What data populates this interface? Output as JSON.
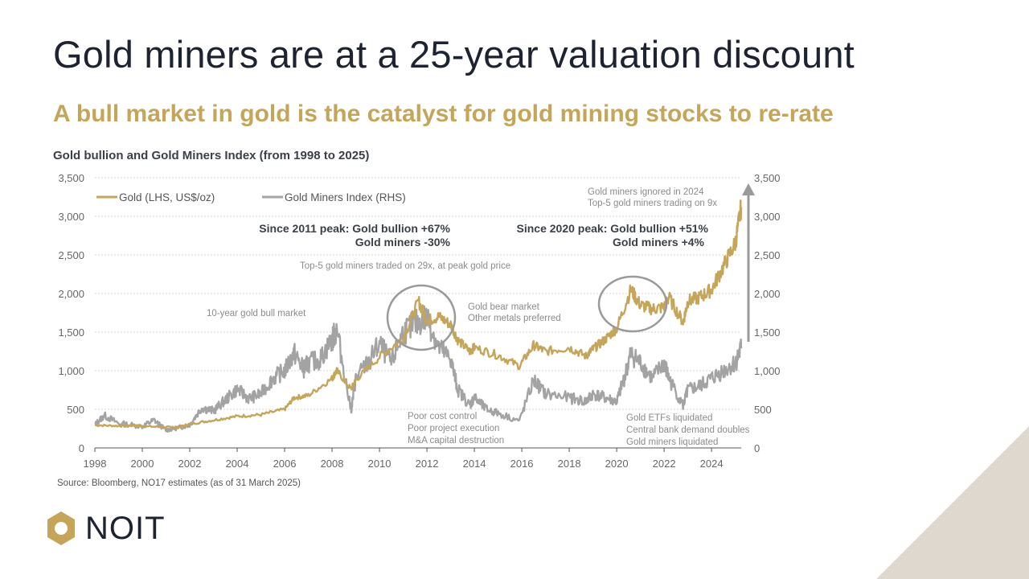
{
  "title": "Gold miners are at a 25-year valuation discount",
  "subtitle": "A bull market in gold is the catalyst for gold mining stocks to re-rate",
  "source": "Source: Bloomberg, NO17 estimates (as of 31 March 2025)",
  "logo": {
    "text": "NOIT",
    "icon": "hexagon-logo-icon",
    "color": "#c5a55a"
  },
  "colors": {
    "gold": "#c5a55a",
    "miners": "#a3a3a3",
    "title": "#1d2330",
    "subtitle": "#c5a55a"
  },
  "chart_data": {
    "type": "line",
    "title": "Gold bullion and Gold Miners Index (from 1998 to 2025)",
    "xlim": [
      1998,
      2025.25
    ],
    "x_ticks": [
      "1998",
      "2000",
      "2002",
      "2004",
      "2006",
      "2008",
      "2010",
      "2012",
      "2014",
      "2016",
      "2018",
      "2020",
      "2022",
      "2024"
    ],
    "y_left": {
      "range": [
        0,
        3500
      ],
      "ticks": [
        "0",
        "500",
        "1,000",
        "1,500",
        "2,000",
        "2,500",
        "3,000",
        "3,500"
      ]
    },
    "y_right": {
      "range": [
        0,
        3500
      ],
      "ticks": [
        "0",
        "500",
        "1,000",
        "1,500",
        "2,000",
        "2,500",
        "3,000",
        "3,500"
      ]
    },
    "grid": true,
    "legend_position": "top-left",
    "series": [
      {
        "name": "Gold (LHS, US$/oz)",
        "x": [
          1998,
          1999,
          1999.7,
          2000,
          2001,
          2001.5,
          2002,
          2003,
          2004,
          2005,
          2006,
          2006.4,
          2007,
          2008,
          2008.2,
          2008.8,
          2009,
          2010,
          2011,
          2011.65,
          2012,
          2012.5,
          2013,
          2013.3,
          2013.8,
          2014,
          2015,
          2015.9,
          2016.5,
          2017,
          2018,
          2018.7,
          2019,
          2019.5,
          2020,
          2020.6,
          2021,
          2021.5,
          2022,
          2022.2,
          2022.8,
          2023,
          2023.5,
          2024,
          2024.5,
          2025,
          2025.25
        ],
        "values": [
          295,
          285,
          290,
          280,
          270,
          265,
          310,
          360,
          410,
          430,
          500,
          650,
          680,
          900,
          1000,
          760,
          880,
          1180,
          1420,
          1900,
          1650,
          1700,
          1600,
          1400,
          1250,
          1300,
          1200,
          1060,
          1330,
          1250,
          1300,
          1190,
          1280,
          1400,
          1550,
          2050,
          1850,
          1800,
          1820,
          1950,
          1630,
          1900,
          1950,
          2050,
          2350,
          2650,
          3120
        ]
      },
      {
        "name": "Gold Miners Index (RHS)",
        "x": [
          1998,
          1998.4,
          1999,
          2000,
          2000.5,
          2001,
          2001.5,
          2002,
          2002.5,
          2003,
          2003.5,
          2004,
          2004.5,
          2005,
          2005.5,
          2006,
          2006.4,
          2006.8,
          2007,
          2007.5,
          2008,
          2008.2,
          2008.8,
          2009,
          2009.5,
          2010,
          2010.5,
          2011,
          2011.5,
          2012,
          2012.5,
          2013,
          2013.3,
          2013.8,
          2014,
          2014.5,
          2015,
          2015.9,
          2016.5,
          2017,
          2018,
          2018.7,
          2019,
          2019.5,
          2020,
          2020.3,
          2020.6,
          2021,
          2021.5,
          2022,
          2022.2,
          2022.8,
          2023,
          2023.5,
          2024,
          2024.5,
          2025,
          2025.25
        ],
        "values": [
          300,
          420,
          320,
          280,
          360,
          230,
          260,
          300,
          520,
          480,
          620,
          760,
          640,
          700,
          900,
          1000,
          1230,
          1020,
          1100,
          1150,
          1400,
          1530,
          480,
          900,
          1100,
          1350,
          1100,
          1500,
          1600,
          1700,
          1300,
          1150,
          760,
          550,
          650,
          500,
          450,
          350,
          880,
          700,
          650,
          600,
          700,
          650,
          600,
          880,
          1220,
          1100,
          900,
          1100,
          900,
          550,
          750,
          800,
          900,
          1000,
          1100,
          1290
        ]
      }
    ],
    "annotations": {
      "bull_market": "10-year gold bull market",
      "top5_29x": "Top-5 gold miners traded on 29x, at peak gold price",
      "since_2011_line1": "Since 2011 peak: Gold bullion +67%",
      "since_2011_line2": "Gold miners -30%",
      "since_2020_line1": "Since 2020 peak: Gold bullion +51%",
      "since_2020_line2": "Gold miners +4%",
      "bear_line1": "Gold bear market",
      "bear_line2": "Other metals preferred",
      "ignored_line1": "Gold miners ignored in 2024",
      "ignored_line2": "Top-5 gold miners trading on 9x",
      "poor_line1": "Poor cost control",
      "poor_line2": "Poor project execution",
      "poor_line3": "M&A capital destruction",
      "etf_line1": "Gold ETFs liquidated",
      "etf_line2": "Central bank demand doubles",
      "etf_line3": "Gold miners liquidated"
    }
  }
}
